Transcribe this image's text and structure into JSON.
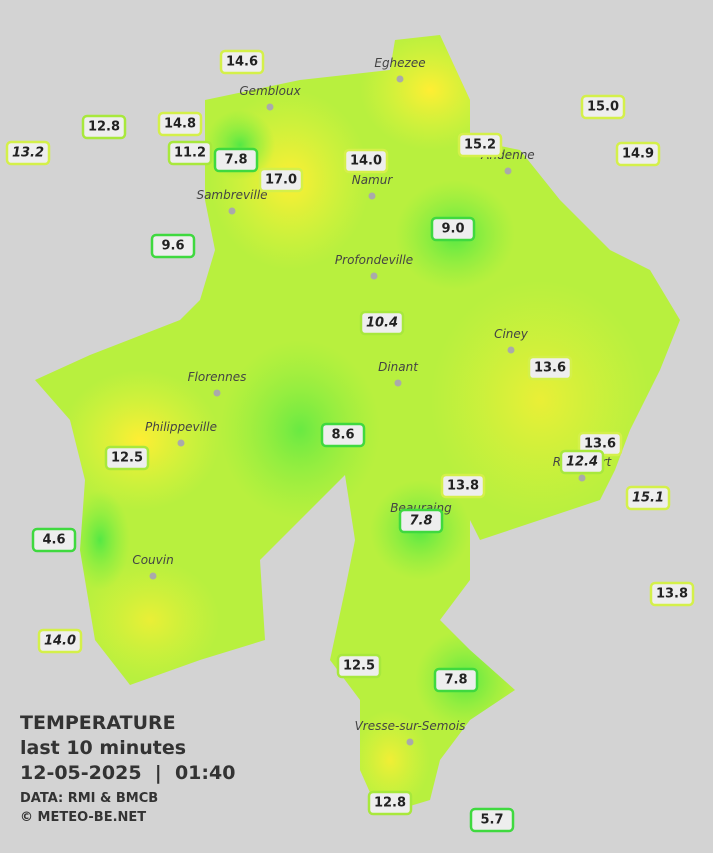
{
  "title": {
    "line1": "TEMPERATURE",
    "line2": "last 10 minutes",
    "date": "12-05-2025",
    "time": "01:40",
    "source": "DATA: RMI & BMCB",
    "copyright": "© METEO-BE.NET"
  },
  "cities": [
    "Eghezee",
    "Gembloux",
    "Andenne",
    "Namur",
    "Sambreville",
    "Profondeville",
    "Ciney",
    "Florennes",
    "Dinant",
    "Philippeville",
    "Rochefort",
    "Beauraing",
    "Couvin",
    "Vresse-sur-Semois"
  ],
  "stations": [
    "14.6",
    "12.8",
    "14.8",
    "13.2",
    "11.2",
    "7.8",
    "17.0",
    "14.0",
    "15.2",
    "15.0",
    "14.9",
    "9.6",
    "9.0",
    "10.4",
    "13.6",
    "8.6",
    "12.5",
    "13.6",
    "12.4",
    "13.8",
    "15.1",
    "7.8",
    "4.6",
    "13.8",
    "14.0",
    "12.5",
    "7.8",
    "12.8",
    "5.7"
  ]
}
